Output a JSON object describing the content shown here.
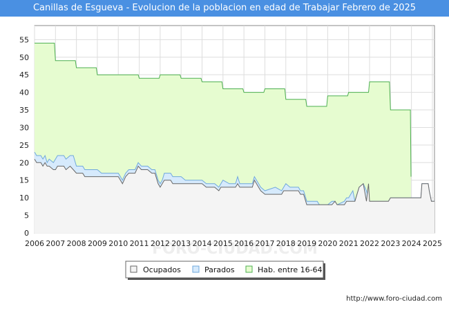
{
  "chart_data": {
    "type": "area",
    "title": "Canillas de Esgueva - Evolucion de la poblacion en edad de Trabajar Febrero de 2025",
    "xlabel": "",
    "ylabel": "",
    "xlim": [
      2006,
      2025.1
    ],
    "ylim": [
      0,
      59
    ],
    "x_ticks": [
      "2006",
      "2007",
      "2008",
      "2009",
      "2010",
      "2011",
      "2012",
      "2013",
      "2014",
      "2015",
      "2016",
      "2017",
      "2018",
      "2019",
      "2020",
      "2021",
      "2022",
      "2023",
      "2024",
      "2025"
    ],
    "y_ticks": [
      0,
      5,
      10,
      15,
      20,
      25,
      30,
      35,
      40,
      45,
      50,
      55
    ],
    "legend_position": "bottom",
    "series": [
      {
        "name": "Hab. entre 16-64",
        "color": "#e6fcd0",
        "line_color": "#4caf50",
        "points": [
          [
            2006.0,
            54
          ],
          [
            2006.95,
            54
          ],
          [
            2007.0,
            49
          ],
          [
            2007.95,
            49
          ],
          [
            2008.0,
            47
          ],
          [
            2008.95,
            47
          ],
          [
            2009.0,
            45
          ],
          [
            2010.95,
            45
          ],
          [
            2011.0,
            44
          ],
          [
            2011.95,
            44
          ],
          [
            2012.0,
            45
          ],
          [
            2012.95,
            45
          ],
          [
            2013.0,
            44
          ],
          [
            2013.95,
            44
          ],
          [
            2014.0,
            43
          ],
          [
            2014.95,
            43
          ],
          [
            2015.0,
            41
          ],
          [
            2015.95,
            41
          ],
          [
            2016.0,
            40
          ],
          [
            2016.95,
            40
          ],
          [
            2017.0,
            41
          ],
          [
            2017.95,
            41
          ],
          [
            2018.0,
            38
          ],
          [
            2018.95,
            38
          ],
          [
            2019.0,
            36
          ],
          [
            2019.95,
            36
          ],
          [
            2020.0,
            39
          ],
          [
            2020.95,
            39
          ],
          [
            2021.0,
            40
          ],
          [
            2021.95,
            40
          ],
          [
            2022.0,
            43
          ],
          [
            2022.95,
            43
          ],
          [
            2023.0,
            35
          ],
          [
            2023.95,
            35
          ],
          [
            2023.98,
            16
          ]
        ]
      },
      {
        "name": "Parados",
        "color": "#d6eafc",
        "line_color": "#6fa8dc",
        "points": [
          [
            2006.0,
            23
          ],
          [
            2006.1,
            22
          ],
          [
            2006.3,
            22
          ],
          [
            2006.4,
            21
          ],
          [
            2006.5,
            22
          ],
          [
            2006.6,
            20
          ],
          [
            2006.7,
            21
          ],
          [
            2006.9,
            20
          ],
          [
            2007.0,
            21
          ],
          [
            2007.1,
            22
          ],
          [
            2007.4,
            22
          ],
          [
            2007.5,
            21
          ],
          [
            2007.7,
            22
          ],
          [
            2007.85,
            22
          ],
          [
            2008.0,
            19
          ],
          [
            2008.3,
            19
          ],
          [
            2008.4,
            18
          ],
          [
            2009.0,
            18
          ],
          [
            2009.2,
            17
          ],
          [
            2010.0,
            17
          ],
          [
            2010.2,
            15
          ],
          [
            2010.35,
            17
          ],
          [
            2010.5,
            18
          ],
          [
            2010.8,
            18
          ],
          [
            2010.95,
            20
          ],
          [
            2011.1,
            19
          ],
          [
            2011.4,
            19
          ],
          [
            2011.6,
            18
          ],
          [
            2011.75,
            18
          ],
          [
            2011.9,
            15
          ],
          [
            2012.0,
            14
          ],
          [
            2012.1,
            15
          ],
          [
            2012.2,
            17
          ],
          [
            2012.5,
            17
          ],
          [
            2012.6,
            16
          ],
          [
            2013.0,
            16
          ],
          [
            2013.2,
            15
          ],
          [
            2013.9,
            15
          ],
          [
            2014.0,
            15
          ],
          [
            2014.2,
            14
          ],
          [
            2014.6,
            14
          ],
          [
            2014.8,
            13
          ],
          [
            2014.9,
            14
          ],
          [
            2015.0,
            15
          ],
          [
            2015.3,
            14
          ],
          [
            2015.6,
            14
          ],
          [
            2015.7,
            16
          ],
          [
            2015.8,
            14
          ],
          [
            2016.4,
            14
          ],
          [
            2016.5,
            16
          ],
          [
            2016.6,
            15
          ],
          [
            2016.8,
            13
          ],
          [
            2017.0,
            12
          ],
          [
            2017.5,
            13
          ],
          [
            2017.8,
            12
          ],
          [
            2017.9,
            13
          ],
          [
            2018.0,
            14
          ],
          [
            2018.2,
            13
          ],
          [
            2018.6,
            13
          ],
          [
            2018.7,
            12
          ],
          [
            2018.85,
            12
          ],
          [
            2019.0,
            9
          ],
          [
            2019.5,
            9
          ],
          [
            2019.6,
            8
          ],
          [
            2020.0,
            8
          ],
          [
            2020.2,
            9
          ],
          [
            2020.35,
            9
          ],
          [
            2020.45,
            8
          ],
          [
            2020.8,
            9
          ],
          [
            2020.9,
            10
          ],
          [
            2021.0,
            10
          ],
          [
            2021.2,
            12
          ],
          [
            2021.3,
            9
          ],
          [
            2021.5,
            13
          ],
          [
            2021.7,
            14
          ],
          [
            2021.85,
            12
          ],
          [
            2021.95,
            10
          ],
          [
            2022.0,
            9
          ],
          [
            2022.9,
            9
          ],
          [
            2023.0,
            10
          ],
          [
            2023.9,
            10
          ],
          [
            2024.45,
            10
          ],
          [
            2024.5,
            14
          ],
          [
            2024.8,
            14
          ],
          [
            2024.85,
            12
          ],
          [
            2024.95,
            9
          ],
          [
            2025.1,
            9
          ]
        ]
      },
      {
        "name": "Ocupados",
        "color": "#f4f4f4",
        "line_color": "#666666",
        "points": [
          [
            2006.0,
            21
          ],
          [
            2006.1,
            20
          ],
          [
            2006.3,
            20
          ],
          [
            2006.4,
            19
          ],
          [
            2006.5,
            20
          ],
          [
            2006.6,
            19
          ],
          [
            2006.7,
            19
          ],
          [
            2006.9,
            18
          ],
          [
            2007.0,
            18
          ],
          [
            2007.1,
            19
          ],
          [
            2007.4,
            19
          ],
          [
            2007.5,
            18
          ],
          [
            2007.7,
            19
          ],
          [
            2007.85,
            18
          ],
          [
            2008.0,
            17
          ],
          [
            2008.3,
            17
          ],
          [
            2008.4,
            16
          ],
          [
            2009.0,
            16
          ],
          [
            2009.2,
            16
          ],
          [
            2010.0,
            16
          ],
          [
            2010.2,
            14
          ],
          [
            2010.35,
            16
          ],
          [
            2010.5,
            17
          ],
          [
            2010.8,
            17
          ],
          [
            2010.95,
            19
          ],
          [
            2011.1,
            18
          ],
          [
            2011.4,
            18
          ],
          [
            2011.6,
            17
          ],
          [
            2011.75,
            17
          ],
          [
            2011.9,
            14
          ],
          [
            2012.0,
            13
          ],
          [
            2012.1,
            14
          ],
          [
            2012.2,
            15
          ],
          [
            2012.5,
            15
          ],
          [
            2012.6,
            14
          ],
          [
            2013.0,
            14
          ],
          [
            2013.2,
            14
          ],
          [
            2013.9,
            14
          ],
          [
            2014.0,
            14
          ],
          [
            2014.2,
            13
          ],
          [
            2014.6,
            13
          ],
          [
            2014.8,
            12
          ],
          [
            2014.9,
            13
          ],
          [
            2015.0,
            13
          ],
          [
            2015.3,
            13
          ],
          [
            2015.6,
            13
          ],
          [
            2015.7,
            14
          ],
          [
            2015.8,
            13
          ],
          [
            2016.4,
            13
          ],
          [
            2016.5,
            15
          ],
          [
            2016.6,
            14
          ],
          [
            2016.8,
            12
          ],
          [
            2017.0,
            11
          ],
          [
            2017.5,
            11
          ],
          [
            2017.8,
            11
          ],
          [
            2017.9,
            12
          ],
          [
            2018.0,
            12
          ],
          [
            2018.2,
            12
          ],
          [
            2018.6,
            12
          ],
          [
            2018.7,
            11
          ],
          [
            2018.85,
            11
          ],
          [
            2019.0,
            8
          ],
          [
            2019.5,
            8
          ],
          [
            2019.6,
            8
          ],
          [
            2020.0,
            8
          ],
          [
            2020.2,
            8
          ],
          [
            2020.35,
            9
          ],
          [
            2020.45,
            8
          ],
          [
            2020.8,
            8
          ],
          [
            2020.9,
            9
          ],
          [
            2021.0,
            9
          ],
          [
            2021.2,
            9
          ],
          [
            2021.3,
            9
          ],
          [
            2021.5,
            13
          ],
          [
            2021.7,
            14
          ],
          [
            2021.85,
            9
          ],
          [
            2021.95,
            14
          ],
          [
            2022.0,
            9
          ],
          [
            2022.9,
            9
          ],
          [
            2023.0,
            10
          ],
          [
            2023.9,
            10
          ],
          [
            2024.45,
            10
          ],
          [
            2024.5,
            14
          ],
          [
            2024.8,
            14
          ],
          [
            2024.85,
            12
          ],
          [
            2024.95,
            9
          ],
          [
            2025.1,
            9
          ]
        ]
      }
    ],
    "legend": [
      "Ocupados",
      "Parados",
      "Hab. entre 16-64"
    ]
  },
  "footer": {
    "url": "http://www.foro-ciudad.com"
  },
  "watermark": "FORO-CIUDAD.COM"
}
